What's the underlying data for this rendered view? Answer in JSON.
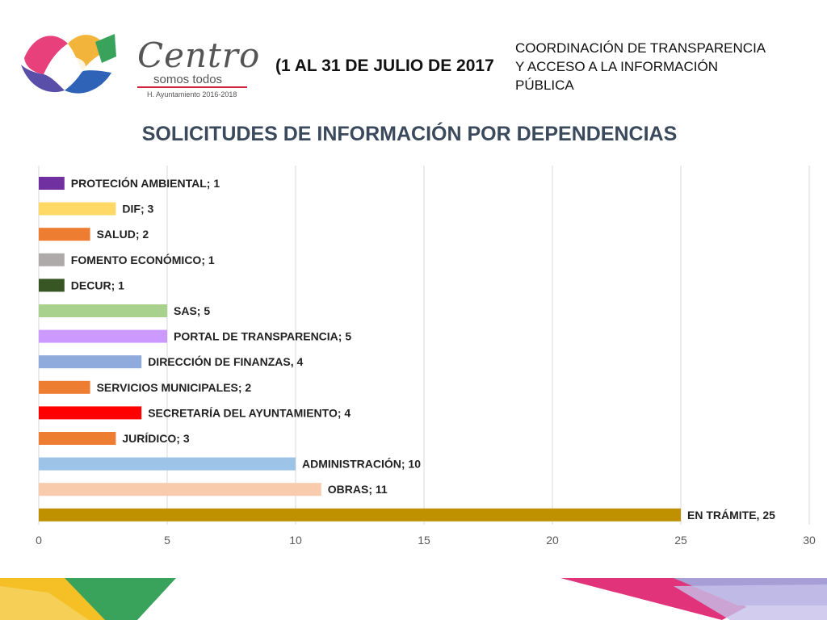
{
  "header": {
    "brand_name": "Centro",
    "brand_tagline": "somos todos",
    "brand_subtitle": "H. Ayuntamiento 2016-2018",
    "period": "(1 AL 31 DE JULIO DE 2017",
    "coordination_lines": [
      "COORDINACIÓN DE TRANSPARENCIA",
      "Y ACCESO A LA INFORMACIÓN",
      "PÚBLICA"
    ]
  },
  "chart_data": {
    "type": "bar",
    "orientation": "horizontal",
    "title": "SOLICITUDES DE INFORMACIÓN POR DEPENDENCIAS",
    "xlim": [
      0,
      30
    ],
    "x_ticks": [
      0,
      5,
      10,
      15,
      20,
      25,
      30
    ],
    "grid": true,
    "categories": [
      "PROTECIÓN AMBIENTAL",
      "DIF",
      "SALUD",
      "FOMENTO ECONÓMICO",
      "DECUR",
      "SAS",
      "PORTAL DE TRANSPARENCIA",
      "DIRECCIÓN DE FINANZAS",
      "SERVICIOS MUNICIPALES",
      "SECRETARÍA DEL AYUNTAMIENTO",
      "JURÍDICO",
      "ADMINISTRACIÓN",
      "OBRAS",
      "EN TRÁMITE"
    ],
    "values": [
      1,
      3,
      2,
      1,
      1,
      5,
      5,
      4,
      2,
      4,
      3,
      10,
      11,
      25
    ],
    "data_labels": [
      "PROTECIÓN AMBIENTAL; 1",
      "DIF; 3",
      "SALUD; 2",
      "FOMENTO ECONÓMICO; 1",
      "DECUR; 1",
      "SAS; 5",
      "PORTAL DE TRANSPARENCIA; 5",
      "DIRECCIÓN DE FINANZAS, 4",
      "SERVICIOS MUNICIPALES; 2",
      "SECRETARÍA DEL AYUNTAMIENTO; 4",
      "JURÍDICO; 3",
      "ADMINISTRACIÓN; 10",
      "OBRAS; 11",
      "EN TRÁMITE, 25"
    ],
    "colors": [
      "#7030a0",
      "#ffd966",
      "#ed7d31",
      "#aeaaaa",
      "#375623",
      "#a9d18e",
      "#cc99ff",
      "#8faadc",
      "#ed7d31",
      "#ff0000",
      "#ed7d31",
      "#9dc3e6",
      "#f8cbad",
      "#bf9000"
    ]
  },
  "decor": {
    "logo_colors": [
      "#e8407a",
      "#f2b43a",
      "#3aa35b",
      "#5a4fa8",
      "#2e63b8"
    ],
    "band_left_colors": [
      "#f5c026",
      "#3aa35b"
    ],
    "band_right_colors": [
      "#e0337a",
      "#a79ed6"
    ]
  }
}
